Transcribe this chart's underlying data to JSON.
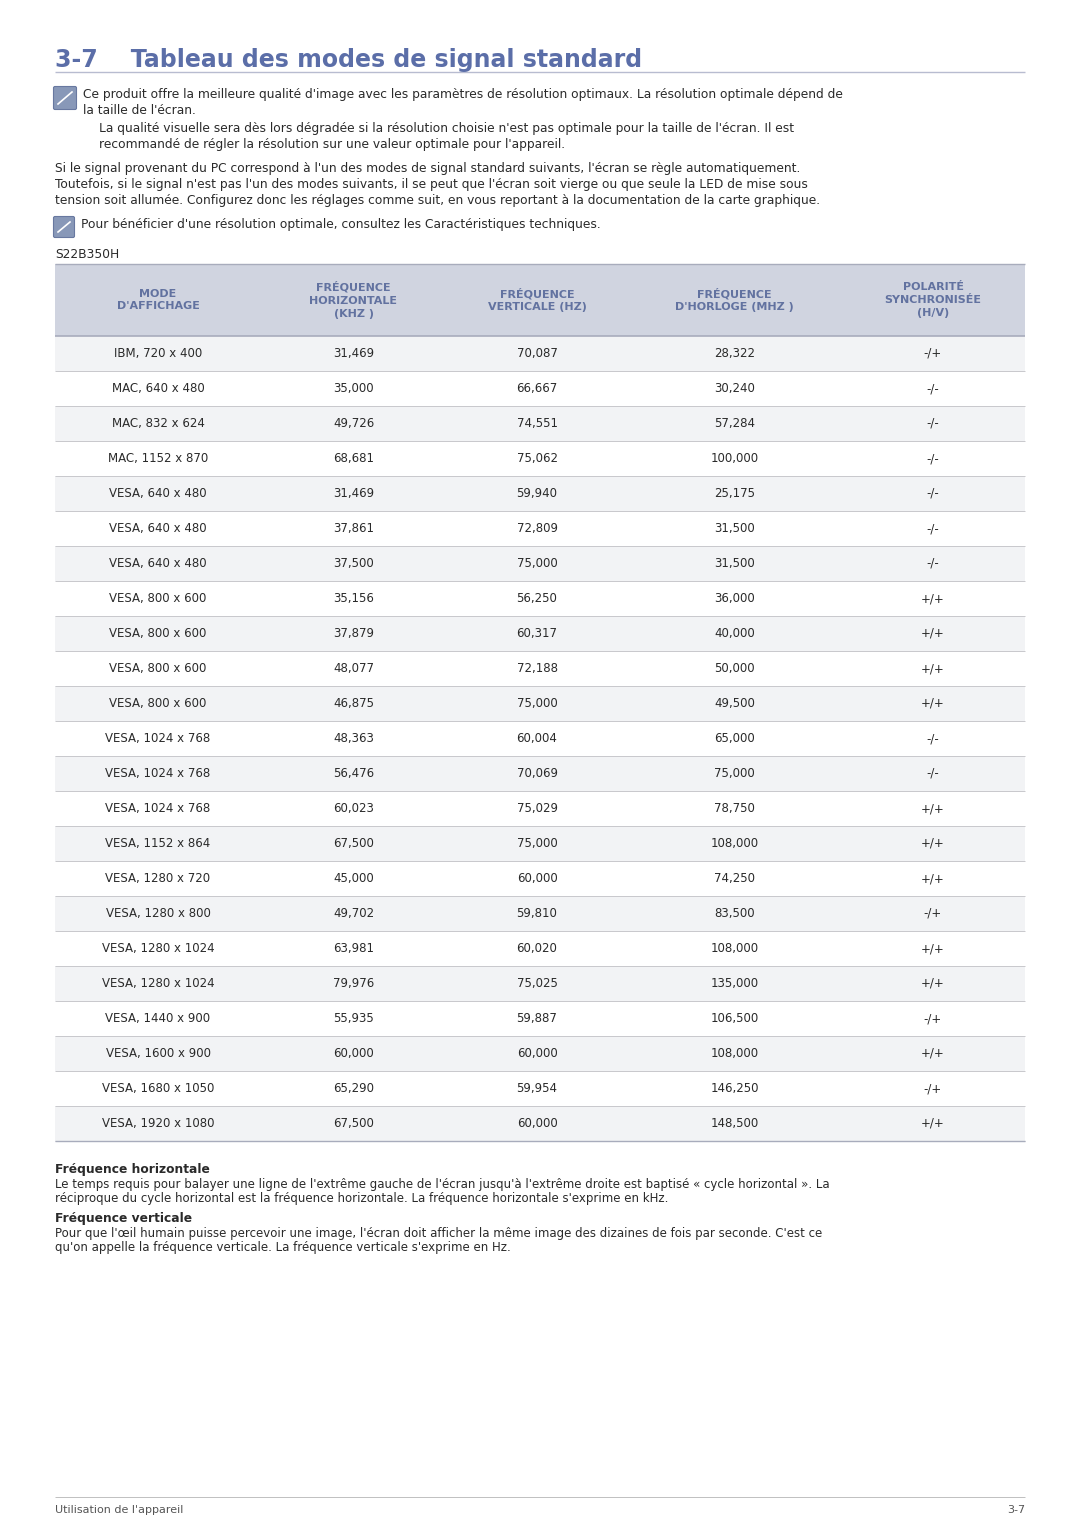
{
  "title": "3-7    Tableau des modes de signal standard",
  "title_color": "#5b6ea8",
  "bg_color": "#ffffff",
  "note1_text_line1": "Ce produit offre la meilleure qualité d'image avec les paramètres de résolution optimaux. La résolution optimale dépend de",
  "note1_text_line2": "la taille de l'écran.",
  "note1_subtext_line1": "La qualité visuelle sera dès lors dégradée si la résolution choisie n'est pas optimale pour la taille de l'écran. Il est",
  "note1_subtext_line2": "recommandé de régler la résolution sur une valeur optimale pour l'appareil.",
  "body_text_line1": "Si le signal provenant du PC correspond à l'un des modes de signal standard suivants, l'écran se règle automatiquement.",
  "body_text_line2": "Toutefois, si le signal n'est pas l'un des modes suivants, il se peut que l'écran soit vierge ou que seule la LED de mise sous",
  "body_text_line3": "tension soit allumée. Configurez donc les réglages comme suit, en vous reportant à la documentation de la carte graphique.",
  "note2_text": "Pour bénéficier d'une résolution optimale, consultez les Caractéristiques techniques.",
  "model_label": "S22B350H",
  "table_header": [
    "MODE\nD'AFFICHAGE",
    "FRÉQUENCE\nHORIZONTALE\n(KHZ )",
    "FRÉQUENCE\nVERTICALE (HZ)",
    "FRÉQUENCE\nD'HORLOGE (MHZ )",
    "POLARITÉ\nSYNCHRONISÉE\n(H/V)"
  ],
  "table_header_color": "#6272a0",
  "table_header_bg": "#d0d4e0",
  "table_row_bg1": "#f2f3f5",
  "table_row_bg2": "#ffffff",
  "table_data": [
    [
      "IBM, 720 x 400",
      "31,469",
      "70,087",
      "28,322",
      "-/+"
    ],
    [
      "MAC, 640 x 480",
      "35,000",
      "66,667",
      "30,240",
      "-/-"
    ],
    [
      "MAC, 832 x 624",
      "49,726",
      "74,551",
      "57,284",
      "-/-"
    ],
    [
      "MAC, 1152 x 870",
      "68,681",
      "75,062",
      "100,000",
      "-/-"
    ],
    [
      "VESA, 640 x 480",
      "31,469",
      "59,940",
      "25,175",
      "-/-"
    ],
    [
      "VESA, 640 x 480",
      "37,861",
      "72,809",
      "31,500",
      "-/-"
    ],
    [
      "VESA, 640 x 480",
      "37,500",
      "75,000",
      "31,500",
      "-/-"
    ],
    [
      "VESA, 800 x 600",
      "35,156",
      "56,250",
      "36,000",
      "+/+"
    ],
    [
      "VESA, 800 x 600",
      "37,879",
      "60,317",
      "40,000",
      "+/+"
    ],
    [
      "VESA, 800 x 600",
      "48,077",
      "72,188",
      "50,000",
      "+/+"
    ],
    [
      "VESA, 800 x 600",
      "46,875",
      "75,000",
      "49,500",
      "+/+"
    ],
    [
      "VESA, 1024 x 768",
      "48,363",
      "60,004",
      "65,000",
      "-/-"
    ],
    [
      "VESA, 1024 x 768",
      "56,476",
      "70,069",
      "75,000",
      "-/-"
    ],
    [
      "VESA, 1024 x 768",
      "60,023",
      "75,029",
      "78,750",
      "+/+"
    ],
    [
      "VESA, 1152 x 864",
      "67,500",
      "75,000",
      "108,000",
      "+/+"
    ],
    [
      "VESA, 1280 x 720",
      "45,000",
      "60,000",
      "74,250",
      "+/+"
    ],
    [
      "VESA, 1280 x 800",
      "49,702",
      "59,810",
      "83,500",
      "-/+"
    ],
    [
      "VESA, 1280 x 1024",
      "63,981",
      "60,020",
      "108,000",
      "+/+"
    ],
    [
      "VESA, 1280 x 1024",
      "79,976",
      "75,025",
      "135,000",
      "+/+"
    ],
    [
      "VESA, 1440 x 900",
      "55,935",
      "59,887",
      "106,500",
      "-/+"
    ],
    [
      "VESA, 1600 x 900",
      "60,000",
      "60,000",
      "108,000",
      "+/+"
    ],
    [
      "VESA, 1680 x 1050",
      "65,290",
      "59,954",
      "146,250",
      "-/+"
    ],
    [
      "VESA, 1920 x 1080",
      "67,500",
      "60,000",
      "148,500",
      "+/+"
    ]
  ],
  "footer_bold1": "Fréquence horizontale",
  "footer_text1_line1": "Le temps requis pour balayer une ligne de l'extrême gauche de l'écran jusqu'à l'extrême droite est baptisé « cycle horizontal ». La",
  "footer_text1_line2": "réciproque du cycle horizontal est la fréquence horizontale. La fréquence horizontale s'exprime en kHz.",
  "footer_bold2": "Fréquence verticale",
  "footer_text2_line1": "Pour que l'œil humain puisse percevoir une image, l'écran doit afficher la même image des dizaines de fois par seconde. C'est ce",
  "footer_text2_line2": "qu'on appelle la fréquence verticale. La fréquence verticale s'exprime en Hz.",
  "page_footer_left": "Utilisation de l'appareil",
  "page_footer_right": "3-7",
  "text_color": "#2a2a2a",
  "line_color": "#c0c0c0",
  "icon_color": "#8898b8"
}
